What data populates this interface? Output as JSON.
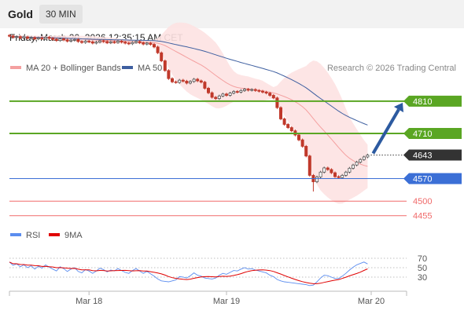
{
  "header": {
    "instrument": "Gold",
    "timeframe": "30 MIN",
    "timestamp": "Friday, March 20, 2026 12:35:15 AM CET",
    "copyright": "Research © 2026 Trading Central"
  },
  "colors": {
    "support_resistance_green": "#5aa623",
    "pivot_blue": "#3b6fd6",
    "target_red": "#f06a6a",
    "ma20": "#f4a0a0",
    "bollinger_fill": "#fde2e2",
    "ma50": "#3e5fa0",
    "candle_up": "#555555",
    "candle_down": "#c0392b",
    "arrow": "#2c5aa0",
    "rsi": "#5b8def",
    "rsi_ma": "#e00000",
    "current_price_box": "#333333"
  },
  "chart_data": [
    {
      "type": "candlestick",
      "instrument": "Gold",
      "timeframe": "30 MIN",
      "legend": [
        {
          "name": "MA 20 + Bollinger Bands",
          "color": "#f4a0a0"
        },
        {
          "name": "MA 50",
          "color": "#3e5fa0"
        }
      ],
      "ylim": [
        4430,
        4890
      ],
      "x_ticks": [
        {
          "label": "Mar 18",
          "bar": 22
        },
        {
          "label": "Mar 19",
          "bar": 60
        },
        {
          "label": "Mar 20",
          "bar": 100
        }
      ],
      "levels": [
        {
          "label": "4810",
          "value": 4810,
          "kind": "resistance",
          "color": "#5aa623",
          "boxed": true
        },
        {
          "label": "4710",
          "value": 4710,
          "kind": "resistance",
          "color": "#5aa623",
          "boxed": true
        },
        {
          "label": "4643",
          "value": 4643,
          "kind": "current",
          "color": "#333333",
          "boxed": true
        },
        {
          "label": "4570",
          "value": 4570,
          "kind": "pivot",
          "color": "#3b6fd6",
          "boxed": true
        },
        {
          "label": "4500",
          "value": 4500,
          "kind": "target",
          "color": "#f06a6a",
          "boxed": false
        },
        {
          "label": "4455",
          "value": 4455,
          "kind": "target",
          "color": "#f06a6a",
          "boxed": false
        }
      ],
      "forecast_arrow": {
        "from_price": 4648,
        "to_price": 4805,
        "direction": "up"
      },
      "close_prices": [
        5012,
        5008,
        5010,
        5006,
        5009,
        5005,
        5007,
        5003,
        5006,
        5004,
        5008,
        5005,
        5002,
        4998,
        5003,
        5000,
        4996,
        4999,
        5001,
        4995,
        4992,
        4996,
        4994,
        4990,
        4993,
        4997,
        4995,
        4991,
        4994,
        4992,
        4996,
        4993,
        4990,
        4988,
        4992,
        4995,
        4991,
        4987,
        4990,
        4986,
        4978,
        4960,
        4935,
        4905,
        4880,
        4870,
        4868,
        4875,
        4872,
        4866,
        4871,
        4878,
        4873,
        4869,
        4850,
        4836,
        4822,
        4818,
        4826,
        4832,
        4828,
        4835,
        4840,
        4838,
        4843,
        4847,
        4844,
        4846,
        4843,
        4841,
        4838,
        4835,
        4828,
        4820,
        4790,
        4755,
        4738,
        4728,
        4718,
        4705,
        4690,
        4670,
        4640,
        4580,
        4560,
        4575,
        4590,
        4603,
        4598,
        4588,
        4576,
        4573,
        4580,
        4590,
        4602,
        4612,
        4621,
        4629,
        4637,
        4643
      ]
    },
    {
      "type": "line",
      "title": "RSI",
      "ylim": [
        0,
        100
      ],
      "ticks": [
        70,
        50,
        30
      ],
      "legend": [
        {
          "name": "RSI",
          "color": "#5b8def"
        },
        {
          "name": "9MA",
          "color": "#e00000"
        }
      ],
      "rsi": [
        62,
        55,
        58,
        52,
        56,
        50,
        54,
        47,
        53,
        49,
        56,
        51,
        47,
        43,
        52,
        48,
        42,
        47,
        50,
        42,
        39,
        46,
        43,
        38,
        43,
        49,
        46,
        41,
        45,
        43,
        48,
        44,
        40,
        38,
        44,
        48,
        43,
        38,
        42,
        37,
        32,
        26,
        22,
        21,
        20,
        22,
        24,
        31,
        30,
        28,
        33,
        39,
        34,
        32,
        28,
        27,
        26,
        28,
        34,
        38,
        36,
        40,
        44,
        43,
        47,
        50,
        47,
        48,
        45,
        43,
        41,
        39,
        34,
        31,
        25,
        22,
        20,
        19,
        18,
        17,
        16,
        15,
        14,
        12,
        13,
        20,
        28,
        34,
        33,
        30,
        27,
        27,
        32,
        38,
        45,
        51,
        56,
        59,
        62,
        58
      ]
    }
  ]
}
